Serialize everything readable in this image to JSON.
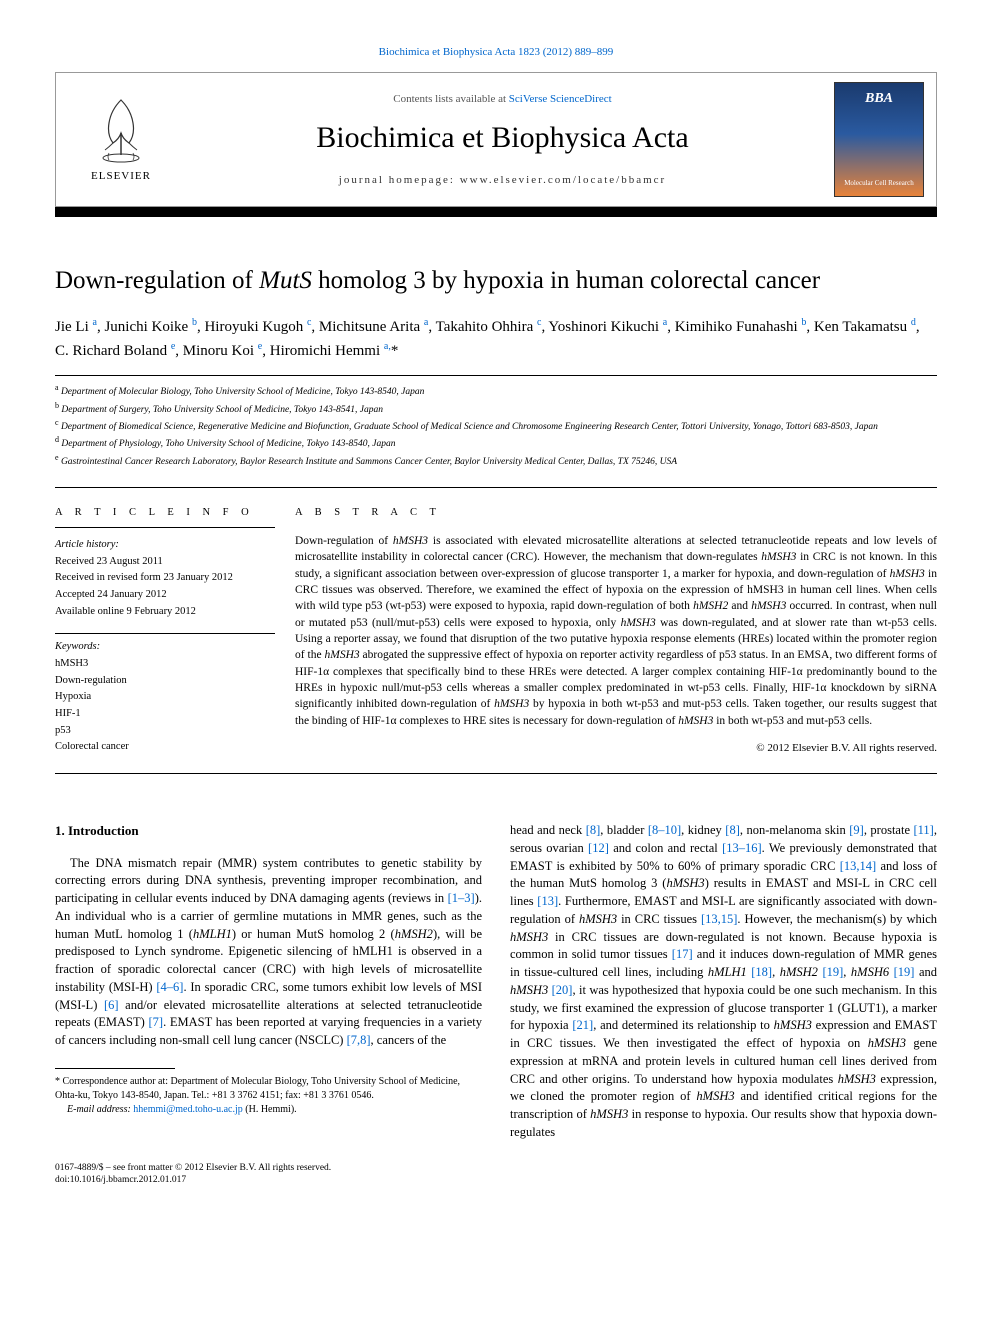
{
  "top_link": "Biochimica et Biophysica Acta 1823 (2012) 889–899",
  "masthead": {
    "contents_prefix": "Contents lists available at ",
    "contents_link": "SciVerse ScienceDirect",
    "journal_name": "Biochimica et Biophysica Acta",
    "homepage_label": "journal homepage: www.elsevier.com/locate/bbamcr",
    "elsevier_label": "ELSEVIER",
    "cover_text": "BBA",
    "cover_sub": "Molecular Cell Research",
    "colors": {
      "link": "#0066cc",
      "cover_top": "#1a3a6e",
      "cover_mid": "#2a5aa0",
      "cover_bot": "#e8833a"
    }
  },
  "article": {
    "title_before": "Down-regulation of ",
    "title_italic": "MutS",
    "title_after": " homolog 3 by hypoxia in human colorectal cancer",
    "authors_html": "Jie Li <sup><a>a</a></sup>, Junichi Koike <sup><a>b</a></sup>, Hiroyuki Kugoh <sup><a>c</a></sup>, Michitsune Arita <sup><a>a</a></sup>, Takahito Ohhira <sup><a>c</a></sup>, Yoshinori Kikuchi <sup><a>a</a></sup>, Kimihiko Funahashi <sup><a>b</a></sup>, Ken Takamatsu <sup><a>d</a></sup>, C. Richard Boland <sup><a>e</a></sup>, Minoru Koi <sup><a>e</a></sup>, Hiromichi Hemmi <sup><a>a,</a></sup><a>*</a>",
    "affiliations": [
      {
        "sup": "a",
        "text": "Department of Molecular Biology, Toho University School of Medicine, Tokyo 143-8540, Japan"
      },
      {
        "sup": "b",
        "text": "Department of Surgery, Toho University School of Medicine, Tokyo 143-8541, Japan"
      },
      {
        "sup": "c",
        "text": "Department of Biomedical Science, Regenerative Medicine and Biofunction, Graduate School of Medical Science and Chromosome Engineering Research Center, Tottori University, Yonago, Tottori 683-8503, Japan"
      },
      {
        "sup": "d",
        "text": "Department of Physiology, Toho University School of Medicine, Tokyo 143-8540, Japan"
      },
      {
        "sup": "e",
        "text": "Gastrointestinal Cancer Research Laboratory, Baylor Research Institute and Sammons Cancer Center, Baylor University Medical Center, Dallas, TX 75246, USA"
      }
    ]
  },
  "info": {
    "heading": "A R T I C L E   I N F O",
    "history_label": "Article history:",
    "history": [
      "Received 23 August 2011",
      "Received in revised form 23 January 2012",
      "Accepted 24 January 2012",
      "Available online 9 February 2012"
    ],
    "keywords_label": "Keywords:",
    "keywords": [
      "hMSH3",
      "Down-regulation",
      "Hypoxia",
      "HIF-1",
      "p53",
      "Colorectal cancer"
    ]
  },
  "abstract": {
    "heading": "A B S T R A C T",
    "text_html": "Down-regulation of <span class='italic'>hMSH3</span> is associated with elevated microsatellite alterations at selected tetranucleotide repeats and low levels of microsatellite instability in colorectal cancer (CRC). However, the mechanism that down-regulates <span class='italic'>hMSH3</span> in CRC is not known. In this study, a significant association between over-expression of glucose transporter 1, a marker for hypoxia, and down-regulation of <span class='italic'>hMSH3</span> in CRC tissues was observed. Therefore, we examined the effect of hypoxia on the expression of hMSH3 in human cell lines. When cells with wild type p53 (wt-p53) were exposed to hypoxia, rapid down-regulation of both <span class='italic'>hMSH2</span> and <span class='italic'>hMSH3</span> occurred. In contrast, when null or mutated p53 (null/mut-p53) cells were exposed to hypoxia, only <span class='italic'>hMSH3</span> was down-regulated, and at slower rate than wt-p53 cells. Using a reporter assay, we found that disruption of the two putative hypoxia response elements (HREs) located within the promoter region of the <span class='italic'>hMSH3</span> abrogated the suppressive effect of hypoxia on reporter activity regardless of p53 status. In an EMSA, two different forms of HIF-1α complexes that specifically bind to these HREs were detected. A larger complex containing HIF-1α predominantly bound to the HREs in hypoxic null/mut-p53 cells whereas a smaller complex predominated in wt-p53 cells. Finally, HIF-1α knockdown by siRNA significantly inhibited down-regulation of <span class='italic'>hMSH3</span> by hypoxia in both wt-p53 and mut-p53 cells. Taken together, our results suggest that the binding of HIF-1α complexes to HRE sites is necessary for down-regulation of <span class='italic'>hMSH3</span> in both wt-p53 and mut-p53 cells.",
    "copyright": "© 2012 Elsevier B.V. All rights reserved."
  },
  "body": {
    "section_heading": "1. Introduction",
    "left_col_html": "The DNA mismatch repair (MMR) system contributes to genetic stability by correcting errors during DNA synthesis, preventing improper recombination, and participating in cellular events induced by DNA damaging agents (reviews in <a class='ref-link'>[1–3]</a>). An individual who is a carrier of germline mutations in MMR genes, such as the human MutL homolog 1 (<span class='italic'>hMLH1</span>) or human MutS homolog 2 (<span class='italic'>hMSH2</span>), will be predisposed to Lynch syndrome. Epigenetic silencing of hMLH1 is observed in a fraction of sporadic colorectal cancer (CRC) with high levels of microsatellite instability (MSI-H) <a class='ref-link'>[4–6]</a>. In sporadic CRC, some tumors exhibit low levels of MSI (MSI-L) <a class='ref-link'>[6]</a> and/or elevated microsatellite alterations at selected tetranucleotide repeats (EMAST) <a class='ref-link'>[7]</a>. EMAST has been reported at varying frequencies in a variety of cancers including non-small cell lung cancer (NSCLC) <a class='ref-link'>[7,8]</a>, cancers of the",
    "right_col_html": "head and neck <a class='ref-link'>[8]</a>, bladder <a class='ref-link'>[8–10]</a>, kidney <a class='ref-link'>[8]</a>, non-melanoma skin <a class='ref-link'>[9]</a>, prostate <a class='ref-link'>[11]</a>, serous ovarian <a class='ref-link'>[12]</a> and colon and rectal <a class='ref-link'>[13–16]</a>. We previously demonstrated that EMAST is exhibited by 50% to 60% of primary sporadic CRC <a class='ref-link'>[13,14]</a> and loss of the human MutS homolog 3 (<span class='italic'>hMSH3</span>) results in EMAST and MSI-L in CRC cell lines <a class='ref-link'>[13]</a>. Furthermore, EMAST and MSI-L are significantly associated with down-regulation of <span class='italic'>hMSH3</span> in CRC tissues <a class='ref-link'>[13,15]</a>. However, the mechanism(s) by which <span class='italic'>hMSH3</span> in CRC tissues are down-regulated is not known. Because hypoxia is common in solid tumor tissues <a class='ref-link'>[17]</a> and it induces down-regulation of MMR genes in tissue-cultured cell lines, including <span class='italic'>hMLH1</span> <a class='ref-link'>[18]</a>, <span class='italic'>hMSH2</span> <a class='ref-link'>[19]</a>, <span class='italic'>hMSH6</span> <a class='ref-link'>[19]</a> and <span class='italic'>hMSH3</span> <a class='ref-link'>[20]</a>, it was hypothesized that hypoxia could be one such mechanism. In this study, we first examined the expression of glucose transporter 1 (GLUT1), a marker for hypoxia <a class='ref-link'>[21]</a>, and determined its relationship to <span class='italic'>hMSH3</span> expression and EMAST in CRC tissues. We then investigated the effect of hypoxia on <span class='italic'>hMSH3</span> gene expression at mRNA and protein levels in cultured human cell lines derived from CRC and other origins. To understand how hypoxia modulates <span class='italic'>hMSH3</span> expression, we cloned the promoter region of <span class='italic'>hMSH3</span> and identified critical regions for the transcription of <span class='italic'>hMSH3</span> in response to hypoxia. Our results show that hypoxia down-regulates"
  },
  "footnote": {
    "corr": "* Correspondence author at: Department of Molecular Biology, Toho University School of Medicine, Ohta-ku, Tokyo 143-8540, Japan. Tel.: +81 3 3762 4151; fax: +81 3 3761 0546.",
    "email_label": "E-mail address:",
    "email": "hhemmi@med.toho-u.ac.jp",
    "email_suffix": "(H. Hemmi)."
  },
  "footer": {
    "line1": "0167-4889/$ – see front matter © 2012 Elsevier B.V. All rights reserved.",
    "line2": "doi:10.1016/j.bbamcr.2012.01.017"
  }
}
